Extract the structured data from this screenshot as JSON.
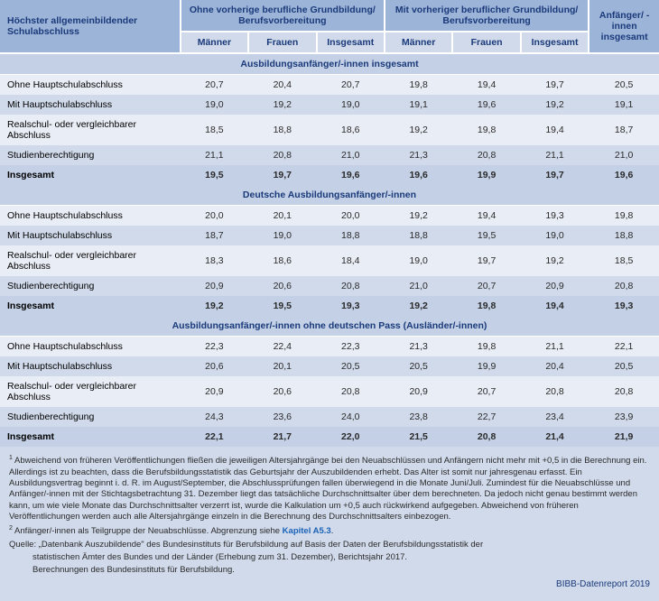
{
  "header": {
    "rowhead": "Höchster allgemeinbildender Schulabschluss",
    "group_ohne": "Ohne vorherige berufliche Grundbildung/ Berufsvorbereitung",
    "group_mit": "Mit vorheriger beruflicher Grundbildung/ Berufsvorbereitung",
    "group_total": "Anfänger/ -innen insgesamt",
    "sub_maenner": "Männer",
    "sub_frauen": "Frauen",
    "sub_insgesamt": "Insgesamt"
  },
  "sections": {
    "s0": "Ausbildungsanfänger/-innen insgesamt",
    "s1": "Deutsche Ausbildungsanfänger/-innen",
    "s2": "Ausbildungsanfänger/-innen ohne deutschen Pass (Ausländer/-innen)"
  },
  "rowlabels": {
    "r0": "Ohne Hauptschulabschluss",
    "r1": "Mit Hauptschulabschluss",
    "r2": "Realschul- oder vergleichbarer Abschluss",
    "r3": "Studienberechtigung",
    "r4": "Insgesamt"
  },
  "d": {
    "s0": {
      "r0": [
        "20,7",
        "20,4",
        "20,7",
        "19,8",
        "19,4",
        "19,7",
        "20,5"
      ],
      "r1": [
        "19,0",
        "19,2",
        "19,0",
        "19,1",
        "19,6",
        "19,2",
        "19,1"
      ],
      "r2": [
        "18,5",
        "18,8",
        "18,6",
        "19,2",
        "19,8",
        "19,4",
        "18,7"
      ],
      "r3": [
        "21,1",
        "20,8",
        "21,0",
        "21,3",
        "20,8",
        "21,1",
        "21,0"
      ],
      "r4": [
        "19,5",
        "19,7",
        "19,6",
        "19,6",
        "19,9",
        "19,7",
        "19,6"
      ]
    },
    "s1": {
      "r0": [
        "20,0",
        "20,1",
        "20,0",
        "19,2",
        "19,4",
        "19,3",
        "19,8"
      ],
      "r1": [
        "18,7",
        "19,0",
        "18,8",
        "18,8",
        "19,5",
        "19,0",
        "18,8"
      ],
      "r2": [
        "18,3",
        "18,6",
        "18,4",
        "19,0",
        "19,7",
        "19,2",
        "18,5"
      ],
      "r3": [
        "20,9",
        "20,6",
        "20,8",
        "21,0",
        "20,7",
        "20,9",
        "20,8"
      ],
      "r4": [
        "19,2",
        "19,5",
        "19,3",
        "19,2",
        "19,8",
        "19,4",
        "19,3"
      ]
    },
    "s2": {
      "r0": [
        "22,3",
        "22,4",
        "22,3",
        "21,3",
        "19,8",
        "21,1",
        "22,1"
      ],
      "r1": [
        "20,6",
        "20,1",
        "20,5",
        "20,5",
        "19,9",
        "20,4",
        "20,5"
      ],
      "r2": [
        "20,9",
        "20,6",
        "20,8",
        "20,9",
        "20,7",
        "20,8",
        "20,8"
      ],
      "r3": [
        "24,3",
        "23,6",
        "24,0",
        "23,8",
        "22,7",
        "23,4",
        "23,9"
      ],
      "r4": [
        "22,1",
        "21,7",
        "22,0",
        "21,5",
        "20,8",
        "21,4",
        "21,9"
      ]
    }
  },
  "footnotes": {
    "f1": "Abweichend von früheren Veröffentlichungen fließen die jeweiligen Altersjahrgänge bei den Neuabschlüssen und Anfängern nicht mehr mit +0,5 in die Berechnung ein. Allerdings ist zu beachten, dass die Berufsbildungsstatistik das Geburtsjahr der Auszubildenden erhebt. Das Alter ist somit nur jahresgenau erfasst. Ein Ausbildungsvertrag beginnt i. d. R. im August/September, die Abschlussprüfungen fallen überwiegend in die Monate Juni/Juli. Zumindest für die Neuabschlüsse und Anfänger/-innen mit der Stichtagsbetrachtung 31. Dezember liegt das tatsächliche Durchschnittsalter über dem berechneten. Da jedoch nicht genau bestimmt werden kann, um wie viele Monate das Durchschnittsalter verzerrt ist, wurde die Kalkulation um +0,5 auch rückwirkend aufgegeben. Abweichend von früheren Veröffentlichungen werden auch alle Altersjahrgänge einzeln in die Berechnung des Durchschnittsalters einbezogen.",
    "f2a": "Anfänger/-innen als Teilgruppe der Neuabschlüsse. Abgrenzung siehe ",
    "f2b": "Kapitel A5.3",
    "f2c": ".",
    "src1": "Quelle: „Datenbank Auszubildende\" des Bundesinstituts für Berufsbildung auf Basis der Daten der Berufsbildungsstatistik der",
    "src2": "statistischen Ämter des Bundes und der Länder (Erhebung zum 31. Dezember), Berichtsjahr 2017.",
    "src3": "Berechnungen des Bundesinstituts für Berufsbildung.",
    "credit": "BIBB-Datenreport 2019"
  },
  "colors": {
    "hdr_bg": "#9db4d9",
    "sub_bg": "#d0daea",
    "section_bg": "#c3d0e6",
    "light_bg": "#e9edf5",
    "dark_bg": "#d0daea",
    "text_hdr": "#1a3a7a",
    "text_body": "#2a2a2a",
    "link": "#1a62b8"
  }
}
